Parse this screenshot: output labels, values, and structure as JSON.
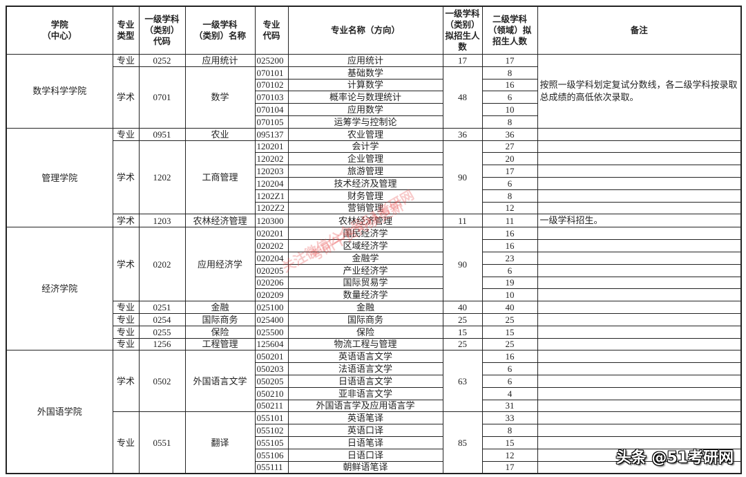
{
  "headers": [
    "学院\n（中心）",
    "专业\n类型",
    "一级学科\n（类别）\n代码",
    "一级学科\n（类别）名称",
    "专业\n代码",
    "专业名称（方向）",
    "一级学科\n（类别）\n拟招生人\n数",
    "二级学科\n（领域）拟\n招生人数",
    "备注"
  ],
  "colleges": [
    {
      "name": "数学科学学院",
      "remark": "按照一级学科划定复试分数线，各二级学科按录取总成绩的高低依次录取。",
      "groups": [
        {
          "type": "专业",
          "code": "0252",
          "name": "应用统计",
          "total": "17",
          "majors": [
            {
              "code": "025200",
              "name": "应用统计",
              "quota": "17"
            }
          ]
        },
        {
          "type": "学术",
          "code": "0701",
          "name": "数学",
          "total": "48",
          "majors": [
            {
              "code": "070101",
              "name": "基础数学",
              "quota": "8"
            },
            {
              "code": "070102",
              "name": "计算数学",
              "quota": "16"
            },
            {
              "code": "070103",
              "name": "概率论与数理统计",
              "quota": "6"
            },
            {
              "code": "070104",
              "name": "应用数学",
              "quota": "10"
            },
            {
              "code": "070105",
              "name": "运筹学与控制论",
              "quota": "8"
            }
          ]
        }
      ]
    },
    {
      "name": "管理学院",
      "groups": [
        {
          "type": "专业",
          "code": "0951",
          "name": "农业",
          "total": "36",
          "majors": [
            {
              "code": "095137",
              "name": "农业管理",
              "quota": "36"
            }
          ]
        },
        {
          "type": "学术",
          "code": "1202",
          "name": "工商管理",
          "total": "90",
          "majors": [
            {
              "code": "120201",
              "name": "会计学",
              "quota": "27"
            },
            {
              "code": "120202",
              "name": "企业管理",
              "quota": "20"
            },
            {
              "code": "120203",
              "name": "旅游管理",
              "quota": "17"
            },
            {
              "code": "120204",
              "name": "技术经济及管理",
              "quota": "6"
            },
            {
              "code": "1202Z1",
              "name": "财务管理",
              "quota": "8"
            },
            {
              "code": "1202Z2",
              "name": "营销管理",
              "quota": "12"
            }
          ]
        },
        {
          "type": "学术",
          "code": "1203",
          "name": "农林经济管理",
          "total": "11",
          "remark": "一级学科招生。",
          "majors": [
            {
              "code": "120300",
              "name": "农林经济管理",
              "quota": "11"
            }
          ]
        }
      ]
    },
    {
      "name": "经济学院",
      "groups": [
        {
          "type": "学术",
          "code": "0202",
          "name": "应用经济学",
          "total": "90",
          "majors": [
            {
              "code": "020201",
              "name": "国民经济学",
              "quota": "16"
            },
            {
              "code": "020202",
              "name": "区域经济学",
              "quota": "16"
            },
            {
              "code": "020204",
              "name": "金融学",
              "quota": "23"
            },
            {
              "code": "020205",
              "name": "产业经济学",
              "quota": "6"
            },
            {
              "code": "020206",
              "name": "国际贸易学",
              "quota": "19"
            },
            {
              "code": "020209",
              "name": "数量经济学",
              "quota": "10"
            }
          ]
        },
        {
          "type": "专业",
          "code": "0251",
          "name": "金融",
          "total": "40",
          "majors": [
            {
              "code": "025100",
              "name": "金融",
              "quota": "40"
            }
          ]
        },
        {
          "type": "专业",
          "code": "0254",
          "name": "国际商务",
          "total": "25",
          "majors": [
            {
              "code": "025400",
              "name": "国际商务",
              "quota": "25"
            }
          ]
        },
        {
          "type": "专业",
          "code": "0255",
          "name": "保险",
          "total": "15",
          "majors": [
            {
              "code": "025500",
              "name": "保险",
              "quota": "15"
            }
          ]
        },
        {
          "type": "专业",
          "code": "1256",
          "name": "工程管理",
          "total": "25",
          "majors": [
            {
              "code": "125604",
              "name": "物流工程与管理",
              "quota": "25"
            }
          ]
        }
      ]
    },
    {
      "name": "外国语学院",
      "groups": [
        {
          "type": "学术",
          "code": "0502",
          "name": "外国语言文学",
          "total": "63",
          "majors": [
            {
              "code": "050201",
              "name": "英语语言文学",
              "quota": "16"
            },
            {
              "code": "050203",
              "name": "法语语言文学",
              "quota": "6"
            },
            {
              "code": "050205",
              "name": "日语语言文学",
              "quota": "6"
            },
            {
              "code": "050210",
              "name": "亚非语言文学",
              "quota": "4"
            },
            {
              "code": "050211",
              "name": "外国语言学及应用语言学",
              "quota": "31"
            }
          ]
        },
        {
          "type": "专业",
          "code": "0551",
          "name": "翻译",
          "total": "85",
          "majors": [
            {
              "code": "055101",
              "name": "英语笔译",
              "quota": "33"
            },
            {
              "code": "055102",
              "name": "英语口译",
              "quota": "8"
            },
            {
              "code": "055105",
              "name": "日语笔译",
              "quota": "15"
            },
            {
              "code": "055106",
              "name": "日语口译",
              "quota": "12"
            },
            {
              "code": "055111",
              "name": "朝鲜语笔译",
              "quota": "17"
            }
          ]
        }
      ]
    }
  ],
  "watermark": {
    "line1": "关注微信公众号51考研网",
    "line2": "考研干货持续更新",
    "color": "#e63c3c"
  },
  "credit": "头条 @51考研网"
}
